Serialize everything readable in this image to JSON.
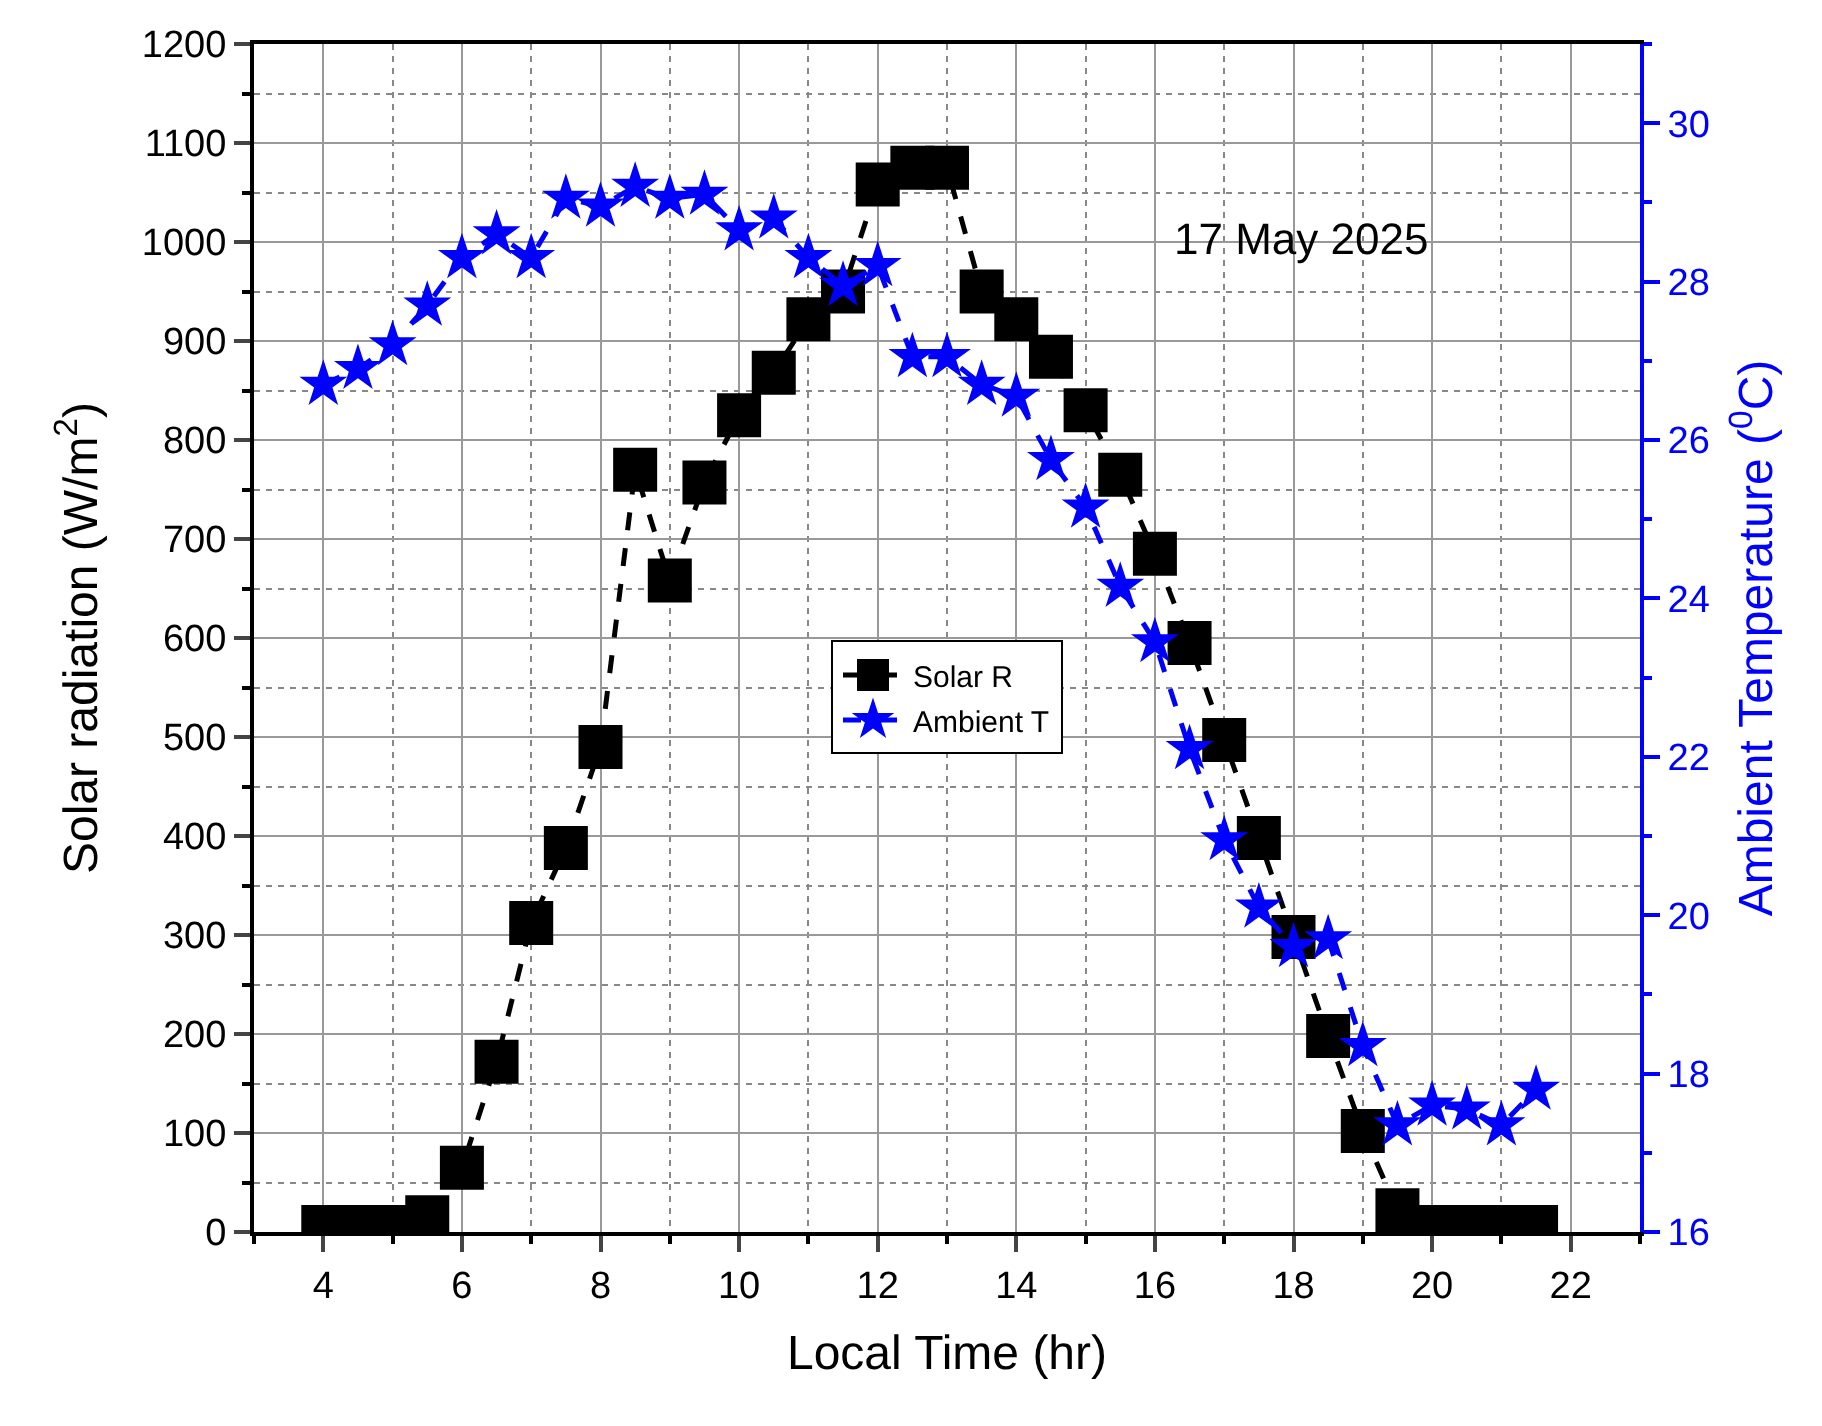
{
  "chart_data": {
    "type": "line",
    "xlabel": "Local Time (hr)",
    "ylabel": "Solar radiation (W/m$^{2}$)",
    "y2label": "Ambient Temperature ($^{0}$C)",
    "annotations": [
      "17 May 2025"
    ],
    "x": [
      4,
      4.5,
      5,
      5.5,
      6,
      6.5,
      7,
      7.5,
      8,
      8.5,
      9,
      9.5,
      10,
      10.5,
      11,
      11.5,
      12,
      12.5,
      13,
      13.5,
      14,
      14.5,
      15,
      15.5,
      16,
      16.5,
      17,
      17.5,
      18,
      18.5,
      19,
      19.5,
      20,
      20.5,
      21,
      21.5
    ],
    "series": [
      {
        "name": "Solar R",
        "color": "#000000",
        "marker": "square",
        "line_style": "dashed",
        "values": [
          5,
          5,
          5,
          15,
          65,
          172,
          312,
          388,
          490,
          770,
          658,
          757,
          825,
          868,
          922,
          950,
          1058,
          1075,
          1075,
          950,
          922,
          884,
          830,
          765,
          685,
          595,
          497,
          398,
          298,
          198,
          102,
          22,
          5,
          5,
          5,
          5
        ]
      },
      {
        "name": "Ambient T",
        "color": "#0000ff",
        "marker": "star",
        "line_style": "dashed",
        "axis": "y2",
        "values": [
          26.7,
          26.9,
          27.2,
          27.7,
          28.3,
          28.6,
          28.3,
          29.05,
          28.95,
          29.2,
          29.05,
          29.1,
          28.65,
          28.8,
          28.3,
          27.95,
          28.2,
          27.05,
          27.05,
          26.7,
          26.55,
          25.75,
          25.15,
          24.15,
          23.45,
          22.1,
          20.95,
          20.1,
          19.6,
          19.7,
          18.35,
          17.35,
          17.6,
          17.55,
          17.35,
          17.8
        ]
      }
    ],
    "xlim": [
      3,
      23
    ],
    "xticks": [
      4,
      6,
      8,
      10,
      12,
      14,
      16,
      18,
      20,
      22
    ],
    "ylim": [
      0,
      1200
    ],
    "yticks": [
      0,
      100,
      200,
      300,
      400,
      500,
      600,
      700,
      800,
      900,
      1000,
      1100,
      1200
    ],
    "y2lim": [
      16,
      31
    ],
    "y2ticks": [
      16,
      18,
      20,
      22,
      24,
      26,
      28,
      30
    ],
    "grid": true,
    "legend": "center"
  }
}
